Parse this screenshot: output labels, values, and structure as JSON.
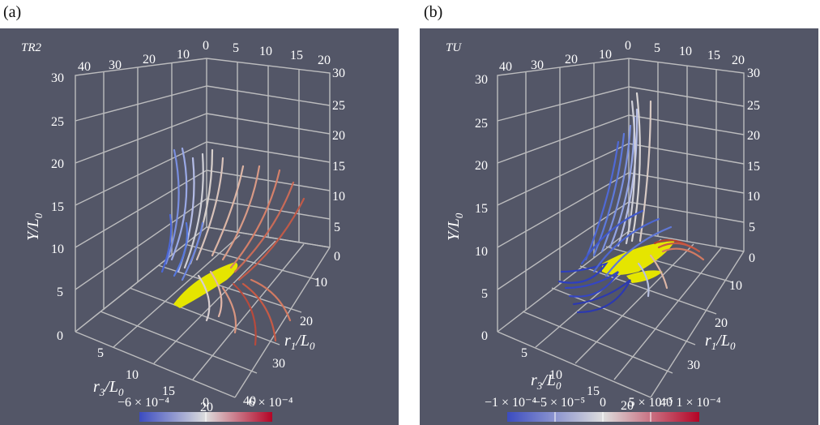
{
  "panels": [
    {
      "letter": "(a)",
      "name": "TR2",
      "axes": {
        "y_label": "Y/L",
        "y_sub": "0",
        "r1_label": "r",
        "r1_sub1": "1",
        "r1_mid": "/L",
        "r1_sub2": "0",
        "r3_label": "r",
        "r3_sub1": "3",
        "r3_mid": "/L",
        "r3_sub2": "0",
        "y_left_ticks": [
          "5",
          "10",
          "15",
          "20",
          "25",
          "30"
        ],
        "top_back_ticks": [
          "40",
          "30",
          "20",
          "10",
          "0"
        ],
        "top_r1_ticks": [
          "5",
          "10",
          "15",
          "20"
        ],
        "right_y_ticks": [
          "30",
          "25",
          "20",
          "15",
          "10",
          "5",
          "0"
        ],
        "r1_front_ticks": [
          "10",
          "20",
          "30",
          "40"
        ],
        "r3_front_ticks": [
          "0",
          "5",
          "10",
          "15",
          "20"
        ]
      },
      "colorbar": {
        "labels": [
          "−6 × 10⁻⁴",
          "0",
          "6 × 10⁻⁴"
        ],
        "gradient": [
          "#3b4cc0",
          "#dddddd",
          "#b40426"
        ]
      }
    },
    {
      "letter": "(b)",
      "name": "TU",
      "axes": {
        "y_label": "Y/L",
        "y_sub": "0",
        "r1_label": "r",
        "r1_sub1": "1",
        "r1_mid": "/L",
        "r1_sub2": "0",
        "r3_label": "r",
        "r3_sub1": "3",
        "r3_mid": "/L",
        "r3_sub2": "0",
        "y_left_ticks": [
          "5",
          "10",
          "15",
          "20",
          "25",
          "30"
        ],
        "top_back_ticks": [
          "40",
          "30",
          "20",
          "10",
          "0"
        ],
        "top_r1_ticks": [
          "5",
          "10",
          "15",
          "20"
        ],
        "right_y_ticks": [
          "30",
          "25",
          "20",
          "15",
          "10",
          "5",
          "0"
        ],
        "r1_front_ticks": [
          "10",
          "20",
          "30",
          "40"
        ],
        "r3_front_ticks": [
          "0",
          "5",
          "10",
          "15",
          "20"
        ]
      },
      "colorbar": {
        "labels": [
          "−1 × 10⁻⁴",
          "−5 × 10⁻⁵",
          "0",
          "5 × 10⁻⁵",
          "1 × 10⁻⁴"
        ],
        "gradient": [
          "#3b4cc0",
          "#dddddd",
          "#b40426"
        ]
      }
    }
  ],
  "colors": {
    "panel_bg": "#535667",
    "grid": "#c8c8c8",
    "isosurface": "#e5e500"
  }
}
